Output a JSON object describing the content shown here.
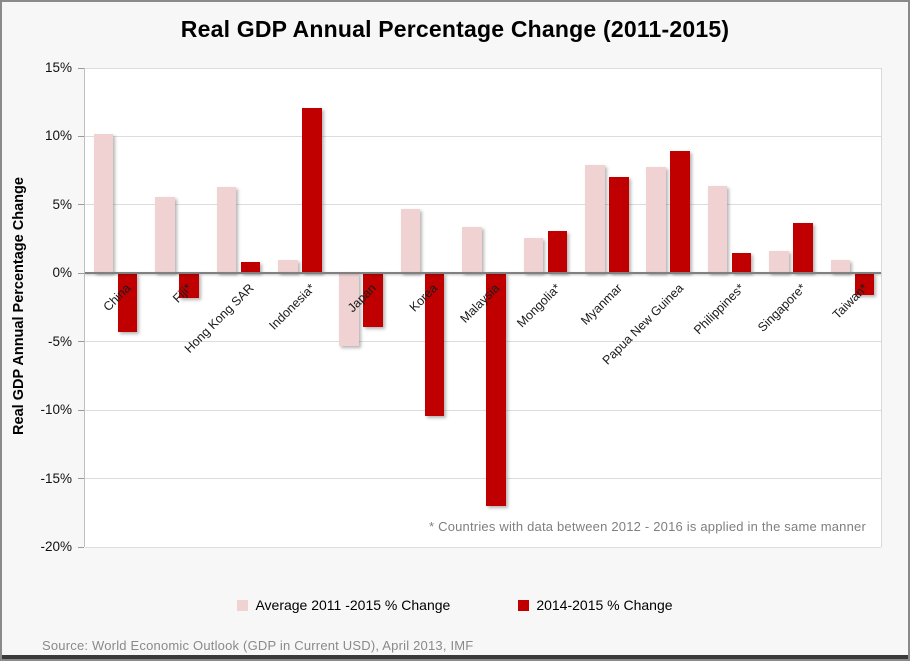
{
  "chart_data": {
    "type": "bar",
    "title": "Real GDP Annual Percentage Change (2011-2015)",
    "ylabel": "Real GDP Annual Percentage Change",
    "xlabel": "",
    "categories": [
      "China",
      "Fiji*",
      "Hong Kong SAR",
      "Indonesia*",
      "Japan",
      "Korea",
      "Malaysia",
      "Mongolia*",
      "Myanmar",
      "Papua New Guinea",
      "Philippines*",
      "Singapore*",
      "Taiwan*"
    ],
    "series": [
      {
        "name": "Average 2011 -2015 % Change",
        "color": "#f0d2d3",
        "values": [
          10.2,
          5.6,
          6.3,
          1.0,
          -5.3,
          4.7,
          3.4,
          2.6,
          7.9,
          7.8,
          6.4,
          1.6,
          1.0
        ]
      },
      {
        "name": "2014-2015 % Change",
        "color": "#c00000",
        "values": [
          -4.3,
          -1.8,
          0.8,
          12.1,
          -3.9,
          -10.4,
          -17.0,
          3.1,
          7.0,
          8.9,
          1.5,
          3.7,
          -1.6
        ]
      }
    ],
    "ylim": [
      -20,
      15
    ],
    "ytick_step": 5,
    "ytick_labels": [
      "15%",
      "10%",
      "5%",
      "0%",
      "-5%",
      "-10%",
      "-15%",
      "-20%"
    ],
    "grid": true,
    "legend_position": "bottom-center",
    "footnote": "* Countries with  data between  2012 - 2016 is applied in the same manner",
    "source": "Source: World Economic Outlook  (GDP in Current  USD), April 2013, IMF"
  },
  "colors": {
    "background": "#f7f7f7",
    "plot_background": "#ffffff",
    "gridline": "#dcdcdc",
    "zero_line": "#808080",
    "frame_border": "#8a8a8a",
    "bottom_strip": "#3a3a3a",
    "footnote_text": "#7f7f7f",
    "source_text": "#8a8a8a"
  }
}
